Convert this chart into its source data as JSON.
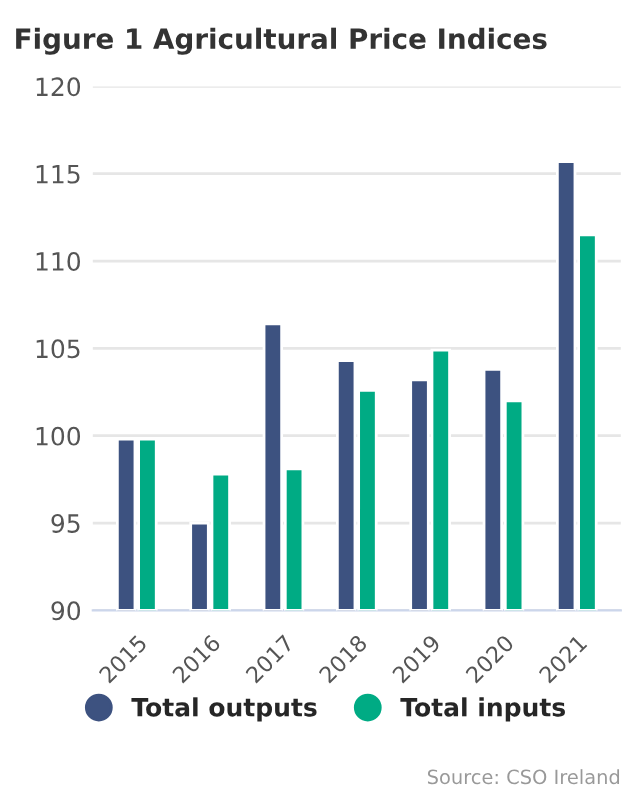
{
  "chart_data": {
    "type": "bar",
    "title": "Figure 1 Agricultural Price Indices",
    "categories": [
      "2015",
      "2016",
      "2017",
      "2018",
      "2019",
      "2020",
      "2021"
    ],
    "series": [
      {
        "name": "Total outputs",
        "color": "#3d5280",
        "values": [
          99.8,
          95.0,
          106.4,
          104.3,
          103.2,
          103.8,
          115.7
        ]
      },
      {
        "name": "Total inputs",
        "color": "#00ab84",
        "values": [
          99.8,
          97.8,
          98.1,
          102.6,
          104.9,
          102.0,
          111.5
        ]
      }
    ],
    "ylim": [
      90,
      120
    ],
    "yticks": [
      90,
      95,
      100,
      105,
      110,
      115,
      120
    ],
    "grid": "y",
    "legend": "bottom",
    "annotations": [
      "Source: CSO Ireland"
    ]
  }
}
